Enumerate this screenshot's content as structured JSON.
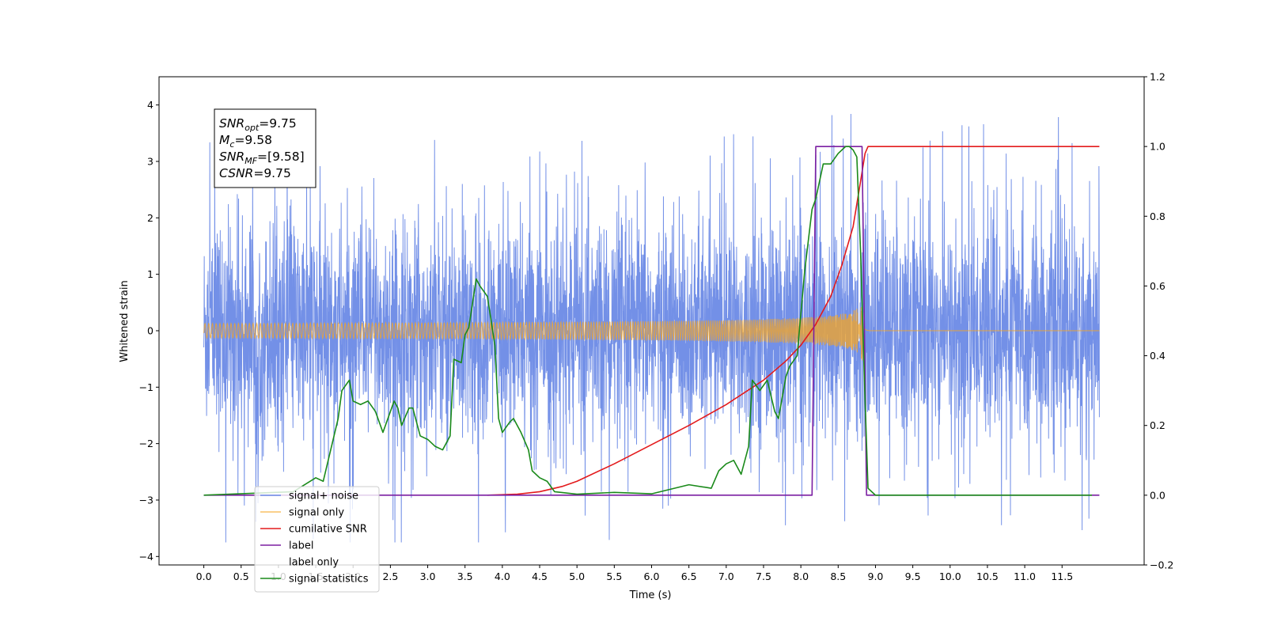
{
  "chart_data": {
    "type": "line",
    "title": "",
    "xlabel": "Time (s)",
    "ylabel": "Whitened strain",
    "y2label": "",
    "xlim": [
      -0.6,
      12.6
    ],
    "ylim": [
      -4.15,
      4.5
    ],
    "y2lim": [
      -0.2,
      1.2
    ],
    "xticks": [
      0.0,
      0.5,
      1.0,
      1.5,
      2.0,
      2.5,
      3.0,
      3.5,
      4.0,
      4.5,
      5.0,
      5.5,
      6.0,
      6.5,
      7.0,
      7.5,
      8.0,
      8.5,
      9.0,
      9.5,
      10.0,
      10.5,
      11.0,
      11.5
    ],
    "xtick_labels": [
      "0.0",
      "0.5",
      "1.0",
      "1.5",
      "2.0",
      "2.5",
      "3.0",
      "3.5",
      "4.0",
      "4.5",
      "5.0",
      "5.5",
      "6.0",
      "6.5",
      "7.0",
      "7.5",
      "8.0",
      "8.5",
      "9.0",
      "9.5",
      "10.0",
      "10.5",
      "11.0",
      "11.5"
    ],
    "yticks": [
      -4,
      -3,
      -2,
      -1,
      0,
      1,
      2,
      3,
      4
    ],
    "ytick_labels": [
      "−4",
      "−3",
      "−2",
      "−1",
      "0",
      "1",
      "2",
      "3",
      "4"
    ],
    "y2ticks": [
      -0.2,
      0.0,
      0.2,
      0.4,
      0.6,
      0.8,
      1.0,
      1.2
    ],
    "y2tick_labels": [
      "−0.2",
      "0.0",
      "0.2",
      "0.4",
      "0.6",
      "0.8",
      "1.0",
      "1.2"
    ],
    "grid": false,
    "legend_position": "lower-left",
    "series": [
      {
        "name": "signal+ noise",
        "color": "#6b8ae6",
        "axis": "left",
        "kind": "noise",
        "t_range": [
          0.0,
          12.0
        ],
        "typical_amplitude": 1.3,
        "spike_extent": [
          -3.75,
          4.12
        ]
      },
      {
        "name": "signal only",
        "color": "#f5a623",
        "axis": "left",
        "kind": "chirp",
        "t_start": 0.0,
        "t_merger": 8.85,
        "t_end": 12.0,
        "peak_amplitude": 0.62
      },
      {
        "name": "cumilative SNR",
        "color": "#e31a1c",
        "axis": "right",
        "x": [
          3.8,
          4.2,
          4.5,
          4.8,
          5.0,
          5.5,
          6.0,
          6.5,
          7.0,
          7.5,
          7.8,
          8.0,
          8.2,
          8.4,
          8.55,
          8.7,
          8.8,
          8.86,
          8.9,
          9.5,
          10.0,
          10.5,
          11.0,
          11.5,
          12.0
        ],
        "values": [
          0.0,
          0.003,
          0.01,
          0.025,
          0.04,
          0.09,
          0.145,
          0.2,
          0.26,
          0.33,
          0.385,
          0.43,
          0.49,
          0.57,
          0.66,
          0.77,
          0.9,
          0.98,
          1.0,
          1.0,
          1.0,
          1.0,
          1.0,
          1.0,
          1.0
        ]
      },
      {
        "name": "label",
        "color": "#7b1fa2",
        "axis": "right",
        "x": [
          0.0,
          8.15,
          8.2,
          8.82,
          8.88,
          12.0
        ],
        "values": [
          0.0,
          0.0,
          1.0,
          1.0,
          0.0,
          0.0
        ]
      },
      {
        "name": "label only",
        "color": "#ffffff",
        "axis": "right",
        "x": [],
        "values": []
      },
      {
        "name": "signal statistics",
        "color": "#1a8a1a",
        "axis": "right",
        "x": [
          0.0,
          1.2,
          1.5,
          1.6,
          1.7,
          1.8,
          1.85,
          1.95,
          2.0,
          2.1,
          2.2,
          2.3,
          2.4,
          2.45,
          2.55,
          2.6,
          2.65,
          2.75,
          2.8,
          2.9,
          3.0,
          3.1,
          3.2,
          3.3,
          3.35,
          3.45,
          3.5,
          3.55,
          3.65,
          3.7,
          3.8,
          3.85,
          3.9,
          3.95,
          4.0,
          4.1,
          4.15,
          4.25,
          4.35,
          4.4,
          4.5,
          4.6,
          4.7,
          5.0,
          5.5,
          6.0,
          6.5,
          6.8,
          6.9,
          7.0,
          7.1,
          7.2,
          7.3,
          7.35,
          7.45,
          7.55,
          7.65,
          7.7,
          7.8,
          7.85,
          7.95,
          8.05,
          8.15,
          8.2,
          8.3,
          8.4,
          8.5,
          8.6,
          8.65,
          8.7,
          8.75,
          8.8,
          8.85,
          8.9,
          9.0,
          9.5,
          10.0,
          11.0,
          11.9
        ],
        "values": [
          0.0,
          0.01,
          0.05,
          0.04,
          0.13,
          0.22,
          0.3,
          0.33,
          0.27,
          0.26,
          0.27,
          0.24,
          0.18,
          0.21,
          0.27,
          0.25,
          0.2,
          0.25,
          0.25,
          0.17,
          0.16,
          0.14,
          0.13,
          0.17,
          0.39,
          0.38,
          0.46,
          0.48,
          0.62,
          0.6,
          0.57,
          0.5,
          0.43,
          0.22,
          0.18,
          0.21,
          0.22,
          0.18,
          0.13,
          0.07,
          0.05,
          0.04,
          0.01,
          0.003,
          0.008,
          0.004,
          0.03,
          0.02,
          0.07,
          0.09,
          0.1,
          0.06,
          0.14,
          0.33,
          0.3,
          0.33,
          0.24,
          0.22,
          0.34,
          0.37,
          0.4,
          0.64,
          0.82,
          0.85,
          0.95,
          0.95,
          0.98,
          1.0,
          1.0,
          0.99,
          0.97,
          0.7,
          0.34,
          0.02,
          0.0,
          0.0,
          0.0,
          0.0,
          0.0
        ]
      }
    ],
    "annotation": [
      {
        "main": "SNR",
        "sub": "opt",
        "value": "=9.75"
      },
      {
        "main": "M",
        "sub": "c",
        "value": "=9.58"
      },
      {
        "main": "SNR",
        "sub": "MF",
        "value": "=[9.58]"
      },
      {
        "main": "CSNR",
        "sub": "",
        "value": "=9.75"
      }
    ]
  }
}
